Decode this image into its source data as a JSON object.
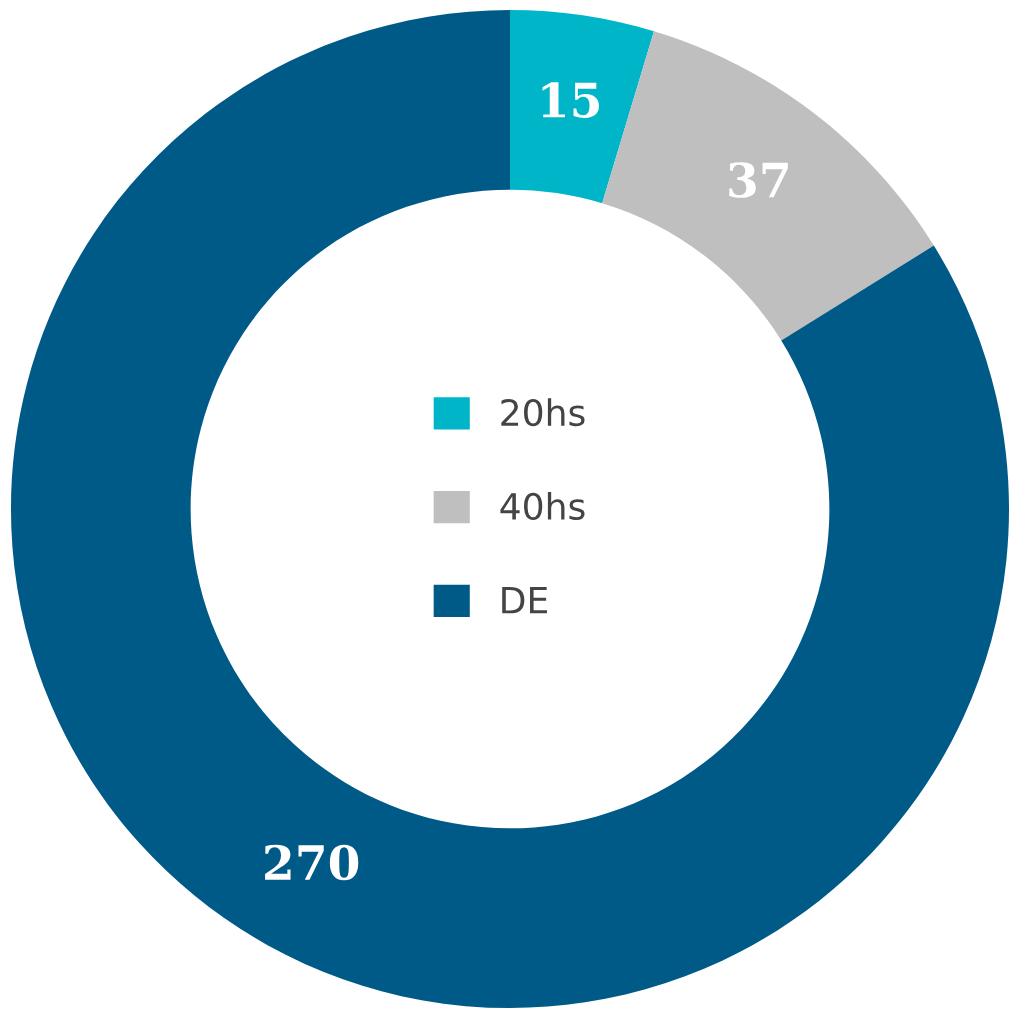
{
  "chart_data": {
    "type": "donut",
    "categories": [
      "20hs",
      "40hs",
      "DE"
    ],
    "values": [
      15,
      37,
      270
    ],
    "colors": [
      "#00b5c8",
      "#bfbfbf",
      "#005a87"
    ],
    "data_labels": true,
    "legend": "center"
  }
}
